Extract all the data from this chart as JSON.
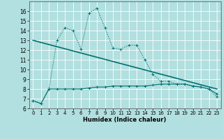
{
  "xlabel": "Humidex (Indice chaleur)",
  "background_color": "#b2dfdf",
  "grid_color": "#ffffff",
  "line_color": "#007070",
  "xlim": [
    -0.5,
    23.5
  ],
  "ylim": [
    6,
    17
  ],
  "yticks": [
    6,
    7,
    8,
    9,
    10,
    11,
    12,
    13,
    14,
    15,
    16
  ],
  "xticks": [
    0,
    1,
    2,
    3,
    4,
    5,
    6,
    7,
    8,
    9,
    10,
    11,
    12,
    13,
    14,
    15,
    16,
    17,
    18,
    19,
    20,
    21,
    22,
    23
  ],
  "series1_x": [
    0,
    1,
    2,
    3,
    4,
    5,
    6,
    7,
    8,
    9,
    10,
    11,
    12,
    13,
    14,
    15,
    16,
    17,
    18,
    19,
    20,
    21,
    22,
    23
  ],
  "series1_y": [
    6.8,
    6.5,
    8.0,
    8.0,
    8.0,
    8.0,
    8.0,
    8.1,
    8.2,
    8.2,
    8.3,
    8.3,
    8.3,
    8.3,
    8.3,
    8.4,
    8.5,
    8.5,
    8.5,
    8.5,
    8.3,
    8.2,
    8.0,
    7.5
  ],
  "series2_x": [
    0,
    1,
    2,
    3,
    4,
    5,
    6,
    7,
    8,
    9,
    10,
    11,
    12,
    13,
    14,
    15,
    16,
    17,
    18,
    19,
    20,
    21,
    22,
    23
  ],
  "series2_y": [
    6.8,
    6.5,
    8.0,
    13.0,
    14.3,
    14.0,
    12.1,
    15.8,
    16.3,
    14.3,
    12.2,
    12.1,
    12.5,
    12.5,
    11.0,
    9.5,
    8.8,
    8.8,
    8.5,
    8.5,
    8.3,
    8.2,
    8.0,
    7.2
  ],
  "series3_x": [
    0,
    23
  ],
  "series3_y": [
    13.0,
    8.0
  ]
}
